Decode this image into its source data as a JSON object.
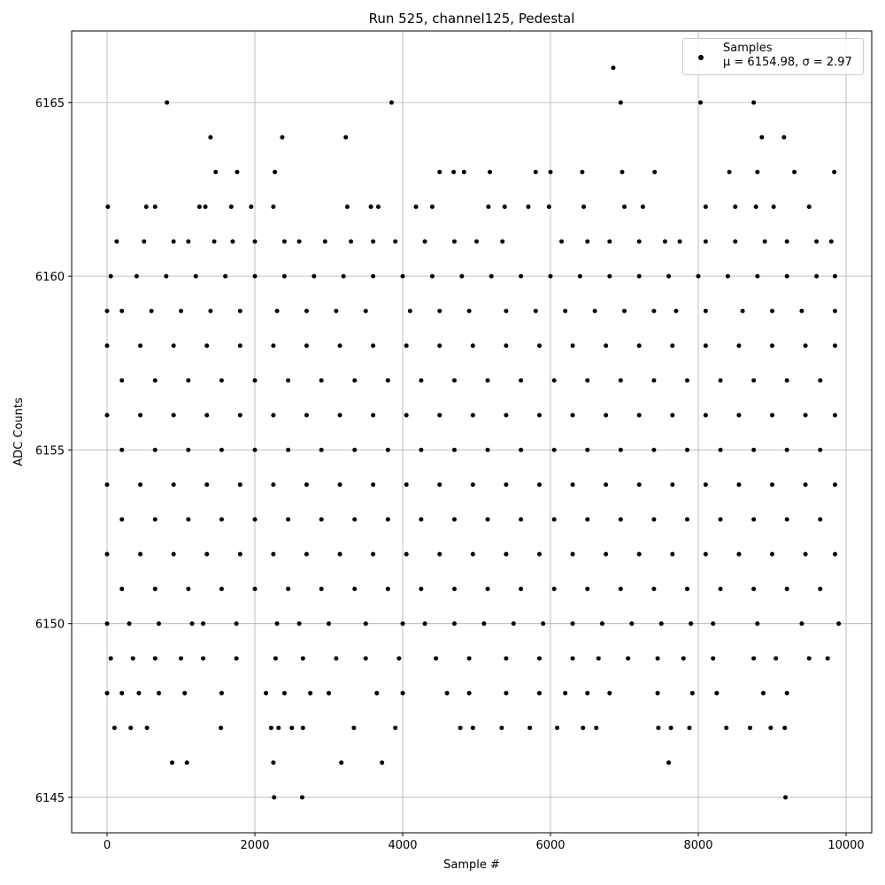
{
  "chart_data": {
    "type": "scatter",
    "title": "Run 525, channel125, Pedestal",
    "x_label": "Sample #",
    "y_label": "ADC Counts",
    "xlim": [
      -479,
      10347
    ],
    "ylim": [
      6143.98,
      6167.06
    ],
    "xticks": [
      0,
      2000,
      4000,
      6000,
      8000,
      10000
    ],
    "yticks": [
      6145,
      6150,
      6155,
      6160,
      6165
    ],
    "grid": true,
    "legend": "upper right",
    "x": [
      810,
      3850,
      6950,
      8030,
      8750,
      6850,
      1400,
      2370,
      3230,
      8860,
      9160,
      1470,
      1760,
      2270,
      4500,
      4690,
      4830,
      5180,
      5800,
      6000,
      6430,
      6970,
      7410,
      8420,
      8800,
      9300,
      9840,
      10,
      530,
      650,
      1250,
      1330,
      1680,
      1950,
      2250,
      3250,
      3570,
      3670,
      4180,
      4400,
      5160,
      5380,
      5700,
      5980,
      6450,
      7000,
      7250,
      8100,
      8500,
      8780,
      9020,
      9500,
      130,
      500,
      900,
      1100,
      1450,
      1700,
      2000,
      2400,
      2600,
      2950,
      3300,
      3600,
      3900,
      4300,
      4700,
      5000,
      5350,
      6150,
      6500,
      6800,
      7200,
      7550,
      7750,
      8100,
      8500,
      8900,
      9200,
      9600,
      9800,
      50,
      400,
      800,
      1200,
      1600,
      2000,
      2400,
      2800,
      3200,
      3600,
      4000,
      4400,
      4800,
      5200,
      5600,
      6000,
      6400,
      6800,
      7200,
      7600,
      8000,
      8400,
      8800,
      9200,
      9600,
      9850,
      0,
      200,
      600,
      1000,
      1400,
      1800,
      2300,
      2700,
      3100,
      3500,
      4100,
      4500,
      4900,
      5400,
      5800,
      6200,
      6600,
      7000,
      7400,
      7700,
      8100,
      8600,
      9000,
      9400,
      9850,
      0,
      450,
      900,
      1350,
      1800,
      2250,
      2700,
      3150,
      3600,
      4050,
      4500,
      4950,
      5400,
      5850,
      6300,
      6750,
      7200,
      7650,
      8100,
      8550,
      9000,
      9450,
      9850,
      200,
      650,
      1100,
      1550,
      2000,
      2450,
      2900,
      3350,
      3800,
      4250,
      4700,
      5150,
      5600,
      6050,
      6500,
      6950,
      7400,
      7850,
      8300,
      8750,
      9200,
      9650,
      0,
      450,
      900,
      1350,
      1800,
      2250,
      2700,
      3150,
      3600,
      4050,
      4500,
      4950,
      5400,
      5850,
      6300,
      6750,
      7200,
      7650,
      8100,
      8550,
      9000,
      9450,
      9850,
      200,
      650,
      1100,
      1550,
      2000,
      2450,
      2900,
      3350,
      3800,
      4250,
      4700,
      5150,
      5600,
      6050,
      6500,
      6950,
      7400,
      7850,
      8300,
      8750,
      9200,
      9650,
      0,
      450,
      900,
      1350,
      1800,
      2250,
      2700,
      3150,
      3600,
      4050,
      4500,
      4950,
      5400,
      5850,
      6300,
      6750,
      7200,
      7650,
      8100,
      8550,
      9000,
      9450,
      9850,
      200,
      650,
      1100,
      1550,
      2000,
      2450,
      2900,
      3350,
      3800,
      4250,
      4700,
      5150,
      5600,
      6050,
      6500,
      6950,
      7400,
      7850,
      8300,
      8750,
      9200,
      9650,
      0,
      450,
      900,
      1350,
      1800,
      2250,
      2700,
      3150,
      3600,
      4050,
      4500,
      4950,
      5400,
      5850,
      6300,
      6750,
      7200,
      7650,
      8100,
      8550,
      9000,
      9450,
      9850,
      200,
      650,
      1100,
      1550,
      2000,
      2450,
      2900,
      3350,
      3800,
      4250,
      4700,
      5150,
      5600,
      6050,
      6500,
      6950,
      7400,
      7850,
      8300,
      8750,
      9200,
      9650,
      0,
      300,
      700,
      1150,
      1300,
      1750,
      2300,
      2600,
      3000,
      3500,
      4000,
      4300,
      4700,
      5100,
      5500,
      5900,
      6300,
      6700,
      7100,
      7500,
      7900,
      8200,
      8800,
      9400,
      9900,
      50,
      350,
      650,
      1000,
      1300,
      1750,
      2280,
      2650,
      3100,
      3500,
      3950,
      4450,
      4900,
      5400,
      5850,
      6300,
      6650,
      7050,
      7450,
      7800,
      8200,
      8750,
      9050,
      9500,
      9750,
      0,
      200,
      430,
      700,
      1050,
      1550,
      2150,
      2400,
      2750,
      3000,
      3650,
      4000,
      4600,
      4900,
      5400,
      5850,
      6200,
      6500,
      6800,
      7450,
      7920,
      8250,
      8880,
      9200,
      100,
      320,
      540,
      1540,
      2220,
      2320,
      2500,
      2650,
      3340,
      3900,
      4780,
      4950,
      5340,
      5720,
      6090,
      6440,
      6620,
      7460,
      7630,
      7880,
      8380,
      8700,
      8980,
      9170,
      880,
      1080,
      2250,
      3170,
      3720,
      7600,
      2260,
      2640,
      9180
    ],
    "series": [
      {
        "name": "Samples\nμ = 6154.98, σ = 2.97",
        "color": "#000000",
        "values": [
          6165,
          6165,
          6165,
          6165,
          6165,
          6166,
          6164,
          6164,
          6164,
          6164,
          6164,
          6163,
          6163,
          6163,
          6163,
          6163,
          6163,
          6163,
          6163,
          6163,
          6163,
          6163,
          6163,
          6163,
          6163,
          6163,
          6163,
          6162,
          6162,
          6162,
          6162,
          6162,
          6162,
          6162,
          6162,
          6162,
          6162,
          6162,
          6162,
          6162,
          6162,
          6162,
          6162,
          6162,
          6162,
          6162,
          6162,
          6162,
          6162,
          6162,
          6162,
          6162,
          6161,
          6161,
          6161,
          6161,
          6161,
          6161,
          6161,
          6161,
          6161,
          6161,
          6161,
          6161,
          6161,
          6161,
          6161,
          6161,
          6161,
          6161,
          6161,
          6161,
          6161,
          6161,
          6161,
          6161,
          6161,
          6161,
          6161,
          6161,
          6161,
          6160,
          6160,
          6160,
          6160,
          6160,
          6160,
          6160,
          6160,
          6160,
          6160,
          6160,
          6160,
          6160,
          6160,
          6160,
          6160,
          6160,
          6160,
          6160,
          6160,
          6160,
          6160,
          6160,
          6160,
          6160,
          6160,
          6159,
          6159,
          6159,
          6159,
          6159,
          6159,
          6159,
          6159,
          6159,
          6159,
          6159,
          6159,
          6159,
          6159,
          6159,
          6159,
          6159,
          6159,
          6159,
          6159,
          6159,
          6159,
          6159,
          6159,
          6159,
          6158,
          6158,
          6158,
          6158,
          6158,
          6158,
          6158,
          6158,
          6158,
          6158,
          6158,
          6158,
          6158,
          6158,
          6158,
          6158,
          6158,
          6158,
          6158,
          6158,
          6158,
          6158,
          6158,
          6157,
          6157,
          6157,
          6157,
          6157,
          6157,
          6157,
          6157,
          6157,
          6157,
          6157,
          6157,
          6157,
          6157,
          6157,
          6157,
          6157,
          6157,
          6157,
          6157,
          6157,
          6157,
          6156,
          6156,
          6156,
          6156,
          6156,
          6156,
          6156,
          6156,
          6156,
          6156,
          6156,
          6156,
          6156,
          6156,
          6156,
          6156,
          6156,
          6156,
          6156,
          6156,
          6156,
          6156,
          6156,
          6155,
          6155,
          6155,
          6155,
          6155,
          6155,
          6155,
          6155,
          6155,
          6155,
          6155,
          6155,
          6155,
          6155,
          6155,
          6155,
          6155,
          6155,
          6155,
          6155,
          6155,
          6155,
          6154,
          6154,
          6154,
          6154,
          6154,
          6154,
          6154,
          6154,
          6154,
          6154,
          6154,
          6154,
          6154,
          6154,
          6154,
          6154,
          6154,
          6154,
          6154,
          6154,
          6154,
          6154,
          6154,
          6153,
          6153,
          6153,
          6153,
          6153,
          6153,
          6153,
          6153,
          6153,
          6153,
          6153,
          6153,
          6153,
          6153,
          6153,
          6153,
          6153,
          6153,
          6153,
          6153,
          6153,
          6153,
          6152,
          6152,
          6152,
          6152,
          6152,
          6152,
          6152,
          6152,
          6152,
          6152,
          6152,
          6152,
          6152,
          6152,
          6152,
          6152,
          6152,
          6152,
          6152,
          6152,
          6152,
          6152,
          6152,
          6151,
          6151,
          6151,
          6151,
          6151,
          6151,
          6151,
          6151,
          6151,
          6151,
          6151,
          6151,
          6151,
          6151,
          6151,
          6151,
          6151,
          6151,
          6151,
          6151,
          6151,
          6151,
          6150,
          6150,
          6150,
          6150,
          6150,
          6150,
          6150,
          6150,
          6150,
          6150,
          6150,
          6150,
          6150,
          6150,
          6150,
          6150,
          6150,
          6150,
          6150,
          6150,
          6150,
          6150,
          6150,
          6150,
          6150,
          6149,
          6149,
          6149,
          6149,
          6149,
          6149,
          6149,
          6149,
          6149,
          6149,
          6149,
          6149,
          6149,
          6149,
          6149,
          6149,
          6149,
          6149,
          6149,
          6149,
          6149,
          6149,
          6149,
          6149,
          6149,
          6148,
          6148,
          6148,
          6148,
          6148,
          6148,
          6148,
          6148,
          6148,
          6148,
          6148,
          6148,
          6148,
          6148,
          6148,
          6148,
          6148,
          6148,
          6148,
          6148,
          6148,
          6148,
          6148,
          6148,
          6147,
          6147,
          6147,
          6147,
          6147,
          6147,
          6147,
          6147,
          6147,
          6147,
          6147,
          6147,
          6147,
          6147,
          6147,
          6147,
          6147,
          6147,
          6147,
          6147,
          6147,
          6147,
          6147,
          6147,
          6146,
          6146,
          6146,
          6146,
          6146,
          6146,
          6145,
          6145,
          6145
        ]
      }
    ]
  }
}
